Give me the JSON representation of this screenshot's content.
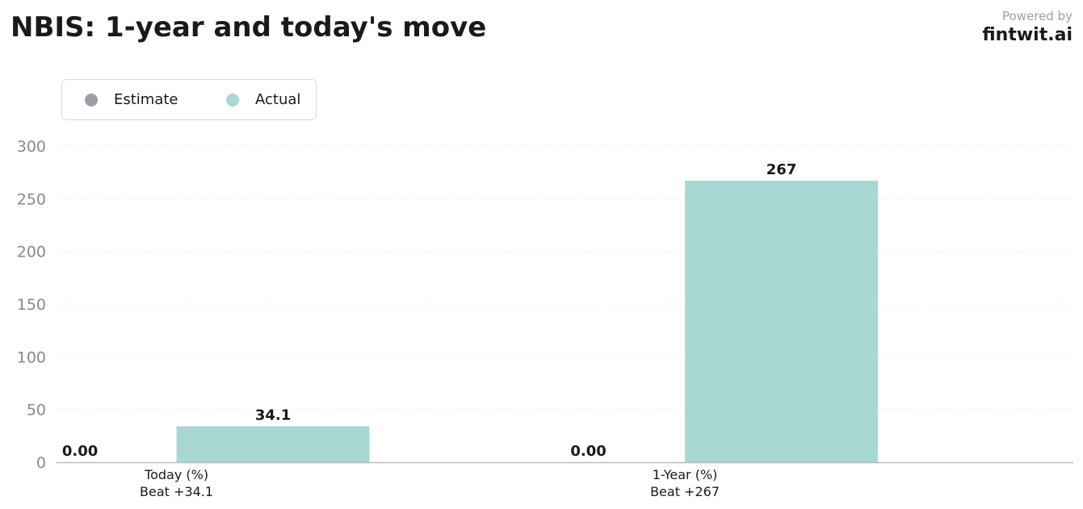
{
  "header": {
    "title": "NBIS: 1-year and today's move",
    "powered_by": "Powered by",
    "brand": "fintwit.ai"
  },
  "legend": {
    "items": [
      {
        "label": "Estimate",
        "color": "#9aa0a6"
      },
      {
        "label": "Actual",
        "color": "#a8d8d4"
      }
    ]
  },
  "chart_data": {
    "type": "bar",
    "categories": [
      "Today (%)",
      "1-Year (%)"
    ],
    "category_sublabels": [
      "Beat +34.1",
      "Beat +267"
    ],
    "series": [
      {
        "name": "Estimate",
        "values": [
          0,
          0
        ],
        "labels": [
          "0.00",
          "0.00"
        ],
        "color": "#9aa0a6"
      },
      {
        "name": "Actual",
        "values": [
          34.1,
          267
        ],
        "labels": [
          "34.1",
          "267"
        ],
        "color": "#a8d8d4"
      }
    ],
    "ylim": [
      0,
      300
    ],
    "yticks": [
      0,
      50,
      100,
      150,
      200,
      250,
      300
    ],
    "grid": true,
    "legend_position": "top-left",
    "xlabel": "",
    "ylabel": ""
  }
}
